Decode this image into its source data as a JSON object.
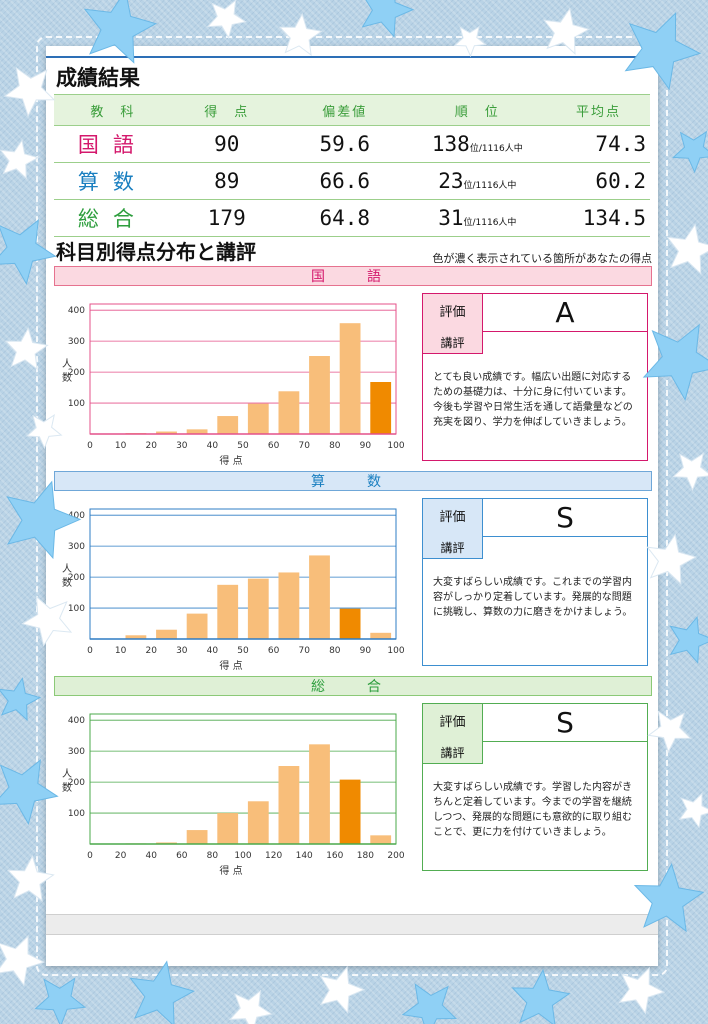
{
  "report": {
    "title": "成績結果",
    "table": {
      "headers": [
        "教　科",
        "得　点",
        "偏差値",
        "順　位",
        "平均点"
      ],
      "rows": [
        {
          "subject": "国語",
          "score": "90",
          "deviation": "59.6",
          "rank": "138",
          "rank_suffix": "位/1116人中",
          "average": "74.3",
          "color": "#d4186c"
        },
        {
          "subject": "算数",
          "score": "89",
          "deviation": "66.6",
          "rank": "23",
          "rank_suffix": "位/1116人中",
          "average": "60.2",
          "color": "#1a7fc0"
        },
        {
          "subject": "総合",
          "score": "179",
          "deviation": "64.8",
          "rank": "31",
          "rank_suffix": "位/1116人中",
          "average": "134.5",
          "color": "#2e9e3e"
        }
      ]
    },
    "section_title": "科目別得点分布と講評",
    "note": "色が濃く表示されている箇所があなたの得点",
    "eval_label": "評価",
    "comment_label": "講評",
    "subjects": [
      {
        "name": "国　語",
        "band_bg": "#fbd9e1",
        "band_border": "#e6728f",
        "band_color": "#d4186c",
        "box_border": "#d4186c",
        "tag_bg": "#fbd9e1",
        "line": "#e4518a",
        "grade": "A",
        "comment": "とても良い成績です。幅広い出題に対応するための基礎力は、十分に身に付いています。今後も学習や日常生活を通して語彙量などの充実を図り、学力を伸ばしていきましょう。"
      },
      {
        "name": "算　数",
        "band_bg": "#d7e7f7",
        "band_border": "#6fa7d8",
        "band_color": "#1a7fc0",
        "box_border": "#3d8fd0",
        "tag_bg": "#d7e7f7",
        "line": "#2d7cc4",
        "grade": "S",
        "comment": "大変すばらしい成績です。これまでの学習内容がしっかり定着しています。発展的な問題に挑戦し、算数の力に磨きをかけましょう。"
      },
      {
        "name": "総　合",
        "band_bg": "#dff0d6",
        "band_border": "#8bc977",
        "band_color": "#2e9e3e",
        "box_border": "#52ad52",
        "tag_bg": "#dff0d6",
        "line": "#4aa84a",
        "grade": "S",
        "comment": "大変すばらしい成績です。学習した内容がきちんと定着しています。今までの学習を継続しつつ、発展的な問題にも意欲的に取り組むことで、更に力を付けていきましょう。"
      }
    ]
  },
  "chart_data": [
    {
      "type": "bar",
      "xlabel": "得 点",
      "ylabel": "人 数",
      "x_ticks": [
        0,
        10,
        20,
        30,
        40,
        50,
        60,
        70,
        80,
        90,
        100
      ],
      "y_ticks": [
        100,
        200,
        300,
        400
      ],
      "ylim": [
        0,
        420
      ],
      "xlim": [
        0,
        100
      ],
      "bin_width": 10,
      "bins": [
        5,
        15,
        25,
        35,
        45,
        55,
        65,
        75,
        85,
        95
      ],
      "values": [
        0,
        3,
        8,
        15,
        58,
        98,
        138,
        252,
        358,
        168
      ],
      "highlight_index": 9,
      "bar_color": "#f8be7a",
      "highlight_color": "#f08a00"
    },
    {
      "type": "bar",
      "xlabel": "得 点",
      "ylabel": "人 数",
      "x_ticks": [
        0,
        10,
        20,
        30,
        40,
        50,
        60,
        70,
        80,
        90,
        100
      ],
      "y_ticks": [
        100,
        200,
        300,
        400
      ],
      "ylim": [
        0,
        420
      ],
      "xlim": [
        0,
        100
      ],
      "bin_width": 10,
      "bins": [
        5,
        15,
        25,
        35,
        45,
        55,
        65,
        75,
        85,
        95
      ],
      "values": [
        0,
        12,
        30,
        82,
        175,
        195,
        215,
        270,
        98,
        20
      ],
      "highlight_index": 8,
      "bar_color": "#f8be7a",
      "highlight_color": "#f08a00"
    },
    {
      "type": "bar",
      "xlabel": "得 点",
      "ylabel": "人 数",
      "x_ticks": [
        0,
        20,
        40,
        60,
        80,
        100,
        120,
        140,
        160,
        180,
        200
      ],
      "y_ticks": [
        100,
        200,
        300,
        400
      ],
      "ylim": [
        0,
        420
      ],
      "xlim": [
        0,
        200
      ],
      "bin_width": 20,
      "bins": [
        10,
        30,
        50,
        70,
        90,
        110,
        130,
        150,
        170,
        190
      ],
      "values": [
        0,
        2,
        5,
        45,
        100,
        138,
        252,
        322,
        208,
        28
      ],
      "highlight_index": 8,
      "bar_color": "#f8be7a",
      "highlight_color": "#f08a00"
    }
  ]
}
